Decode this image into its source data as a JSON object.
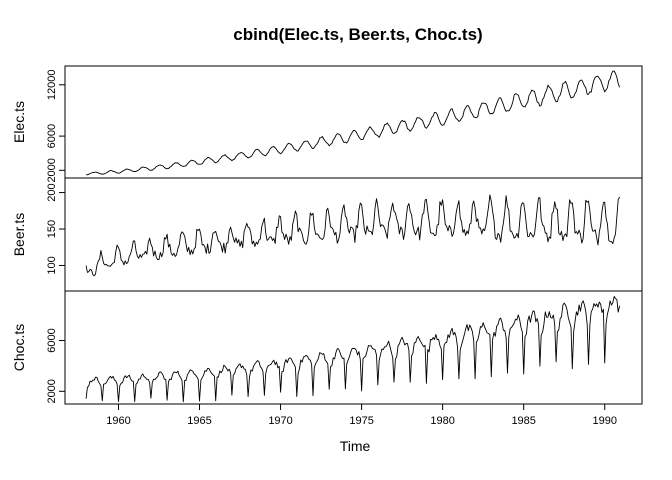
{
  "chart_data": {
    "type": "line",
    "title": "cbind(Elec.ts, Beer.ts, Choc.ts)",
    "xlabel": "Time",
    "x_ticks": [
      1960,
      1965,
      1970,
      1975,
      1980,
      1985,
      1990
    ],
    "xlim": [
      1956.7,
      1992.3
    ],
    "frequency": "monthly",
    "start": 1958.0,
    "end": 1990.917,
    "panels": [
      {
        "name": "Elec.ts",
        "ylim": [
          1100,
          14200
        ],
        "y_ticks": [
          2000,
          6000,
          12000
        ],
        "shape": {
          "base_start": 1600,
          "base_end": 12800,
          "growth_power": 1.35,
          "season_amp_start": 120,
          "season_amp_end": 1100,
          "noise": 0.02
        }
      },
      {
        "name": "Beer.ts",
        "ylim": [
          65,
          220
        ],
        "y_ticks": [
          100,
          150,
          200
        ],
        "shape": {
          "base_start": 86,
          "base_peak": 160,
          "peak_year": 1977,
          "base_end": 158,
          "season_amp_start": 9,
          "season_amp_end": 27,
          "noise": 0.06
        }
      },
      {
        "name": "Choc.ts",
        "ylim": [
          1000,
          9900
        ],
        "y_ticks": [
          2000,
          6000
        ],
        "shape": {
          "base_start": 2400,
          "base_end": 7800,
          "growth_power": 1.6,
          "season_amp_start": 650,
          "season_amp_end": 1900,
          "noise": 0.07
        }
      }
    ]
  }
}
